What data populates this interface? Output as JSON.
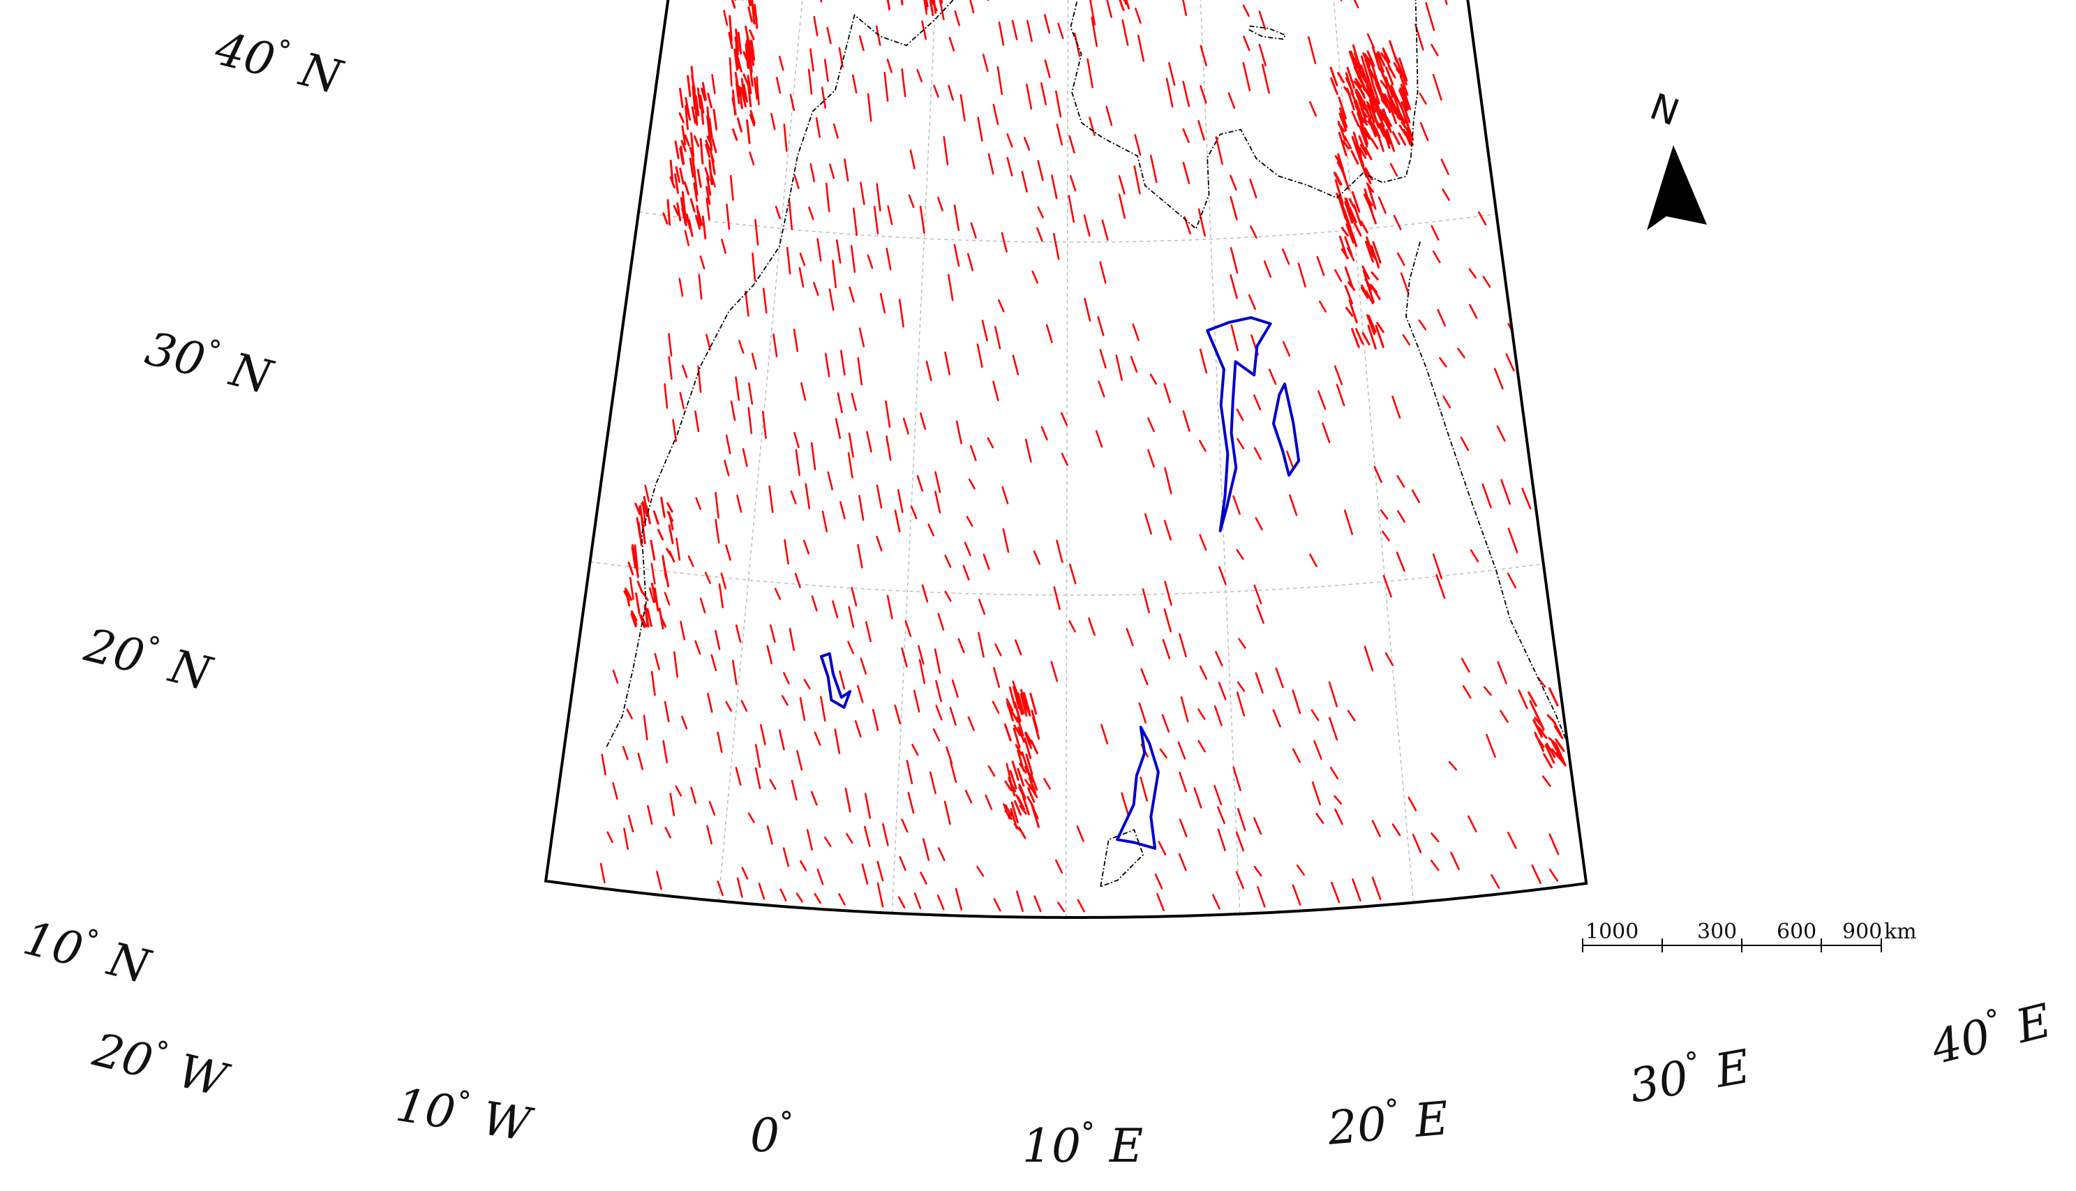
{
  "map": {
    "graticule": {
      "latitudes": [
        {
          "value": 10,
          "label": "10",
          "hemisphere": "N"
        },
        {
          "value": 20,
          "label": "20",
          "hemisphere": "N"
        },
        {
          "value": 30,
          "label": "30",
          "hemisphere": "N"
        },
        {
          "value": 40,
          "label": "40",
          "hemisphere": "N"
        }
      ],
      "longitudes": [
        {
          "value": -20,
          "label": "20",
          "hemisphere": "W"
        },
        {
          "value": -10,
          "label": "10",
          "hemisphere": "W"
        },
        {
          "value": 0,
          "label": "0",
          "hemisphere": ""
        },
        {
          "value": 10,
          "label": "10",
          "hemisphere": "E"
        },
        {
          "value": 20,
          "label": "20",
          "hemisphere": "E"
        },
        {
          "value": 30,
          "label": "30",
          "hemisphere": "E"
        },
        {
          "value": 40,
          "label": "40",
          "hemisphere": "E"
        }
      ],
      "degree_symbol": "°"
    },
    "extent": {
      "lon_min": -20,
      "lon_max": 40,
      "lat_min": 10,
      "lat_max": 40
    },
    "north_arrow": {
      "label": "N"
    },
    "scale_bar": {
      "ticks": [
        "1000",
        "300",
        "600",
        "900"
      ],
      "unit": "km"
    },
    "colors": {
      "tracks": "#ff0000",
      "regions": "#0000cc",
      "coastline": "#000000",
      "graticule": "#bbbbbb",
      "frame": "#000000"
    }
  }
}
